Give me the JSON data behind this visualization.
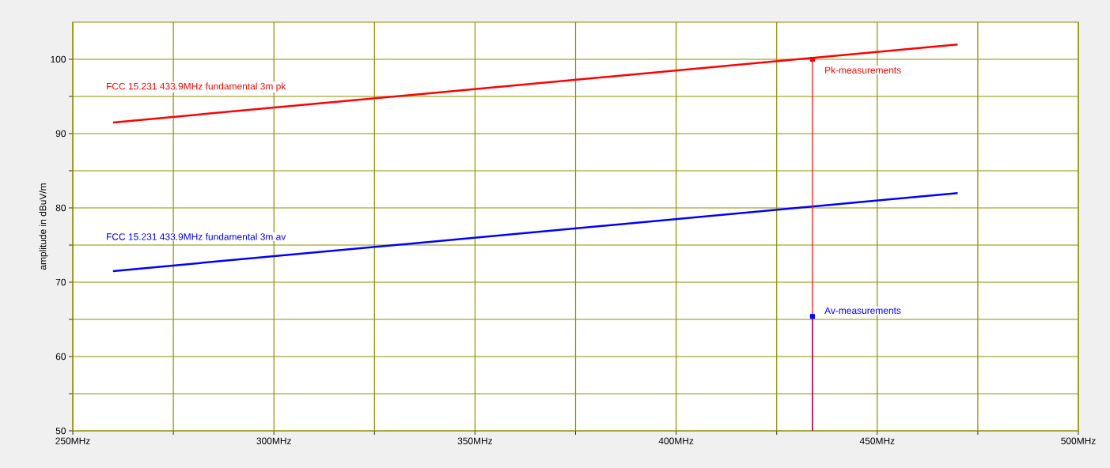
{
  "chart_data": {
    "type": "line",
    "ylabel": "amplitude in dBuV/m",
    "xlim": [
      250,
      500
    ],
    "ylim": [
      50,
      105
    ],
    "xticks": [
      {
        "value": 250,
        "label": "250MHz"
      },
      {
        "value": 275,
        "label": null
      },
      {
        "value": 300,
        "label": "300MHz"
      },
      {
        "value": 325,
        "label": null
      },
      {
        "value": 350,
        "label": "350MHz"
      },
      {
        "value": 375,
        "label": null
      },
      {
        "value": 400,
        "label": "400MHz"
      },
      {
        "value": 425,
        "label": null
      },
      {
        "value": 450,
        "label": "450MHz"
      },
      {
        "value": 475,
        "label": null
      },
      {
        "value": 500,
        "label": "500MHz"
      }
    ],
    "yticks": [
      50,
      {
        "value": 55,
        "label": null
      },
      60,
      {
        "value": 65,
        "label": null
      },
      70,
      {
        "value": 75,
        "label": null
      },
      80,
      {
        "value": 85,
        "label": null
      },
      90,
      {
        "value": 95,
        "label": null
      },
      100
    ],
    "grid": true,
    "series": [
      {
        "name": "FCC 15.231 433.9MHz fundamental 3m pk",
        "color": "#ff0000",
        "x": [
          260,
          470
        ],
        "values": [
          91.5,
          102
        ]
      },
      {
        "name": "FCC 15.231 433.9MHz fundamental 3m av",
        "color": "#0000ff",
        "x": [
          260,
          470
        ],
        "values": [
          71.5,
          82
        ]
      },
      {
        "type": "lollipop",
        "name": "Av-measurements",
        "color": "#0000ff",
        "marker": "square",
        "x": [
          433.9
        ],
        "values": [
          65.4
        ]
      },
      {
        "type": "lollipop",
        "name": "Pk-measurements",
        "color": "#ff0000",
        "marker": "square",
        "x": [
          433.9
        ],
        "values": [
          100
        ]
      }
    ]
  }
}
